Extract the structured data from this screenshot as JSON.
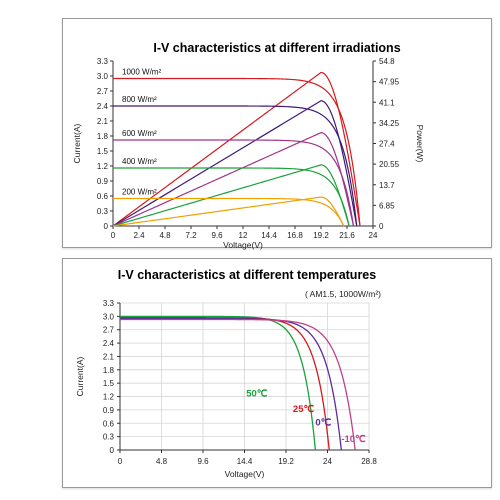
{
  "chart_data": [
    {
      "type": "line",
      "title": "I-V characteristics at different irradiations",
      "xlabel": "Voltage(V)",
      "ylabel": "Current(A)",
      "y2label": "Power(W)",
      "xlim": [
        0,
        24
      ],
      "ylim": [
        0,
        3.3
      ],
      "y2lim": [
        0,
        54.8
      ],
      "x_ticks": [
        "0",
        "2.4",
        "4.8",
        "7.2",
        "9.6",
        "12",
        "14.4",
        "16.8",
        "19.2",
        "21.6",
        "24"
      ],
      "y_ticks": [
        "0",
        "0.3",
        "0.6",
        "0.9",
        "1.2",
        "1.5",
        "1.8",
        "2.1",
        "2.4",
        "2.7",
        "3.0",
        "3.3"
      ],
      "y2_ticks": [
        "0",
        "6.85",
        "13.7",
        "20.55",
        "27.4",
        "34.25",
        "41.1",
        "47.95",
        "54.8"
      ],
      "grid": false,
      "series": [
        {
          "name": "1000 W/m²",
          "color": "#d7191c",
          "isc": 2.95,
          "voc": 22.8
        },
        {
          "name": "800 W/m²",
          "color": "#3d1a78",
          "isc": 2.4,
          "voc": 22.5
        },
        {
          "name": "600 W/m²",
          "color": "#a0348a",
          "isc": 1.72,
          "voc": 22.2
        },
        {
          "name": "400 W/m²",
          "color": "#1aa23c",
          "isc": 1.16,
          "voc": 21.8
        },
        {
          "name": "200 W/m²",
          "color": "#f0a000",
          "isc": 0.55,
          "voc": 21.3
        }
      ],
      "power_peaks_w": [
        51.0,
        41.6,
        31.0,
        20.3,
        9.6
      ],
      "power_peak_voltage": 19.2
    },
    {
      "type": "line",
      "title": "I-V characteristics at different temperatures",
      "subtitle": "( AM1.5, 1000W/m²)",
      "xlabel": "Voltage(V)",
      "ylabel": "Current(A)",
      "xlim": [
        0,
        28.8
      ],
      "ylim": [
        0,
        3.3
      ],
      "x_ticks": [
        "0",
        "4.8",
        "9.6",
        "14.4",
        "19.2",
        "24",
        "28.8"
      ],
      "y_ticks": [
        "0",
        "0.3",
        "0.6",
        "0.9",
        "1.2",
        "1.5",
        "1.8",
        "2.1",
        "2.4",
        "2.7",
        "3.0",
        "3.3"
      ],
      "grid": true,
      "series": [
        {
          "name": "50℃",
          "color": "#1aa23c",
          "isc": 3.0,
          "voc": 22.6
        },
        {
          "name": "25℃",
          "color": "#d7191c",
          "isc": 2.97,
          "voc": 24.2
        },
        {
          "name": "0℃",
          "color": "#5b2d9c",
          "isc": 2.95,
          "voc": 25.6
        },
        {
          "name": "-10℃",
          "color": "#c0408a",
          "isc": 2.93,
          "voc": 27.2
        }
      ]
    }
  ]
}
